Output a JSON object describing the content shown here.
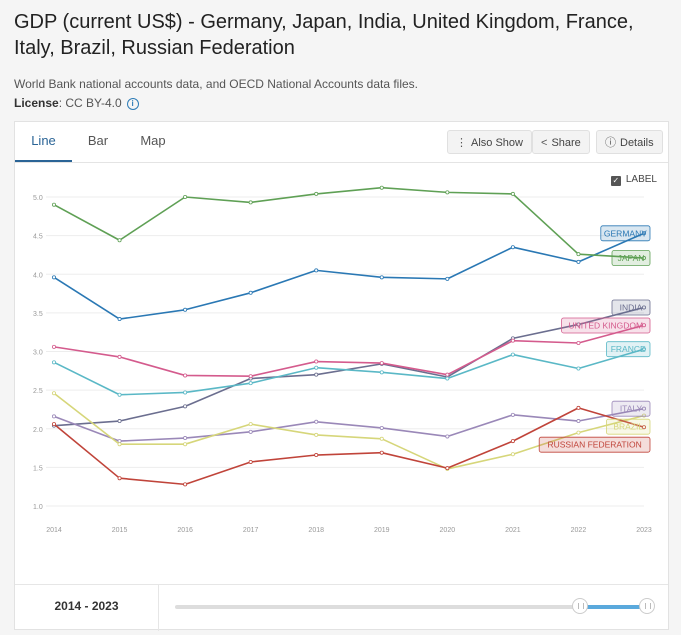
{
  "header": {
    "title": "GDP (current US$) - Germany, Japan, India, United Kingdom, France, Italy, Brazil, Russian Federation",
    "source": "World Bank national accounts data, and OECD National Accounts data files.",
    "license_label": "License",
    "license_value": ": CC BY-4.0"
  },
  "tabs": [
    {
      "label": "Line",
      "active": true
    },
    {
      "label": "Bar",
      "active": false
    },
    {
      "label": "Map",
      "active": false
    }
  ],
  "toolbar": {
    "also_show": "Also Show",
    "share": "Share",
    "details": "Details"
  },
  "label_toggle": {
    "label": "LABEL",
    "checked": true
  },
  "footer": {
    "range_label": "2014 - 2023",
    "range": [
      2014,
      2023
    ],
    "selected": [
      2022,
      2023
    ]
  },
  "colors": {
    "accent": "#2a6496",
    "slider": "#5aa9dc"
  },
  "chart_data": {
    "type": "line",
    "x": [
      2014,
      2015,
      2016,
      2017,
      2018,
      2019,
      2020,
      2021,
      2022,
      2023
    ],
    "ylim": [
      1.0,
      5.0
    ],
    "yticks": [
      "1.0",
      "1.5",
      "2.0",
      "2.5",
      "3.0",
      "3.5",
      "4.0",
      "4.5",
      "5.0"
    ],
    "grid": true,
    "series": [
      {
        "name": "GERMANY",
        "color": "#2a78b4",
        "values": [
          3.96,
          3.42,
          3.54,
          3.76,
          4.05,
          3.96,
          3.94,
          4.35,
          4.16,
          4.53
        ]
      },
      {
        "name": "JAPAN",
        "color": "#5fa055",
        "values": [
          4.9,
          4.44,
          5.0,
          4.93,
          5.04,
          5.12,
          5.06,
          5.04,
          4.26,
          4.21
        ]
      },
      {
        "name": "INDIA",
        "color": "#6b6e8f",
        "values": [
          2.04,
          2.1,
          2.29,
          2.65,
          2.7,
          2.84,
          2.67,
          3.17,
          3.35,
          3.57
        ]
      },
      {
        "name": "UNITED KINGDOM",
        "color": "#d45b8d",
        "values": [
          3.06,
          2.93,
          2.69,
          2.68,
          2.87,
          2.85,
          2.7,
          3.14,
          3.11,
          3.34
        ]
      },
      {
        "name": "FRANCE",
        "color": "#5ab8c6",
        "values": [
          2.86,
          2.44,
          2.47,
          2.59,
          2.79,
          2.73,
          2.65,
          2.96,
          2.78,
          3.03
        ]
      },
      {
        "name": "ITALY",
        "color": "#9a88b8",
        "values": [
          2.16,
          1.84,
          1.88,
          1.96,
          2.09,
          2.01,
          1.9,
          2.18,
          2.1,
          2.26
        ]
      },
      {
        "name": "BRAZIL",
        "color": "#d6d67a",
        "values": [
          2.46,
          1.8,
          1.8,
          2.06,
          1.92,
          1.87,
          1.48,
          1.67,
          1.95,
          2.17
        ]
      },
      {
        "name": "RUSSIAN FEDERATION",
        "color": "#c0443a",
        "values": [
          2.06,
          1.36,
          1.28,
          1.57,
          1.66,
          1.69,
          1.49,
          1.84,
          2.27,
          2.02
        ]
      }
    ]
  }
}
